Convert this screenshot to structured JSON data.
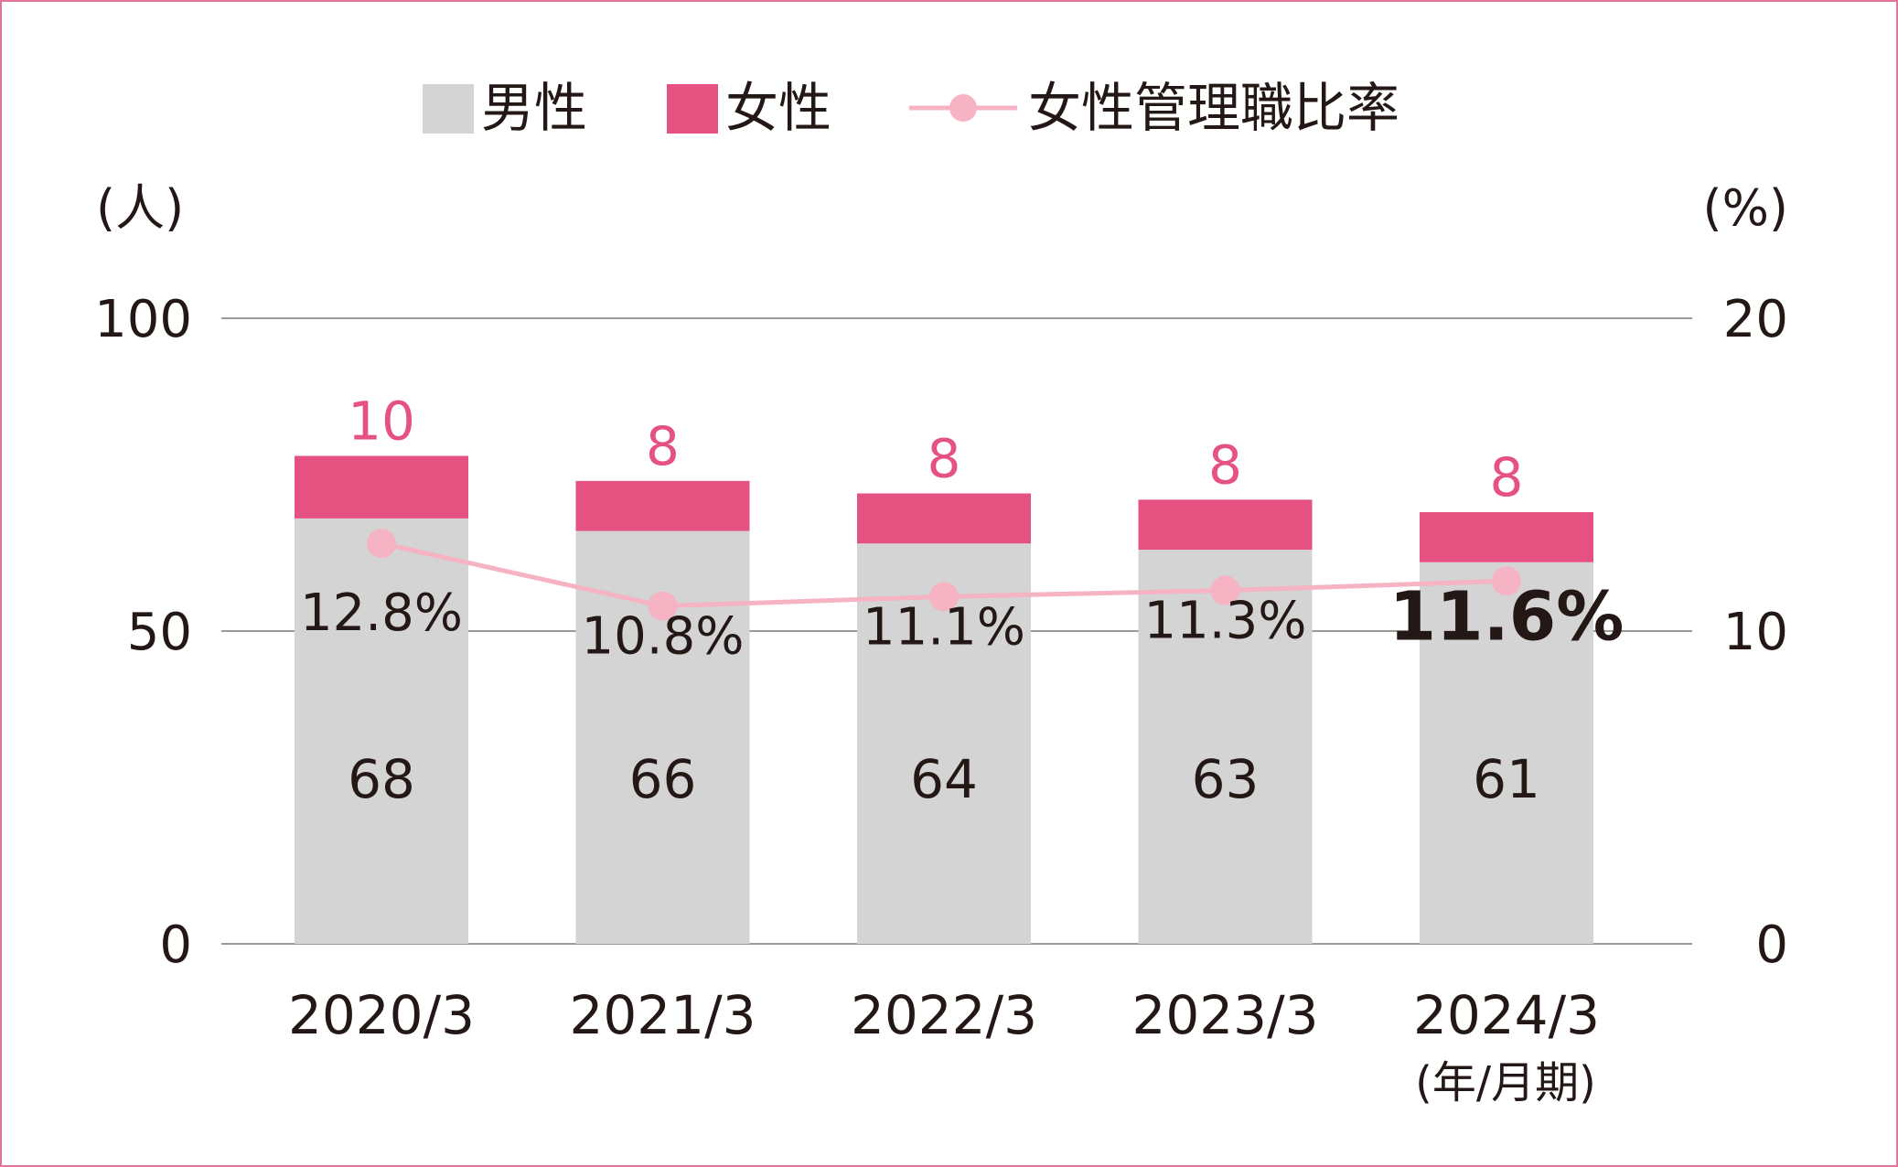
{
  "colors": {
    "male": "#d4d4d4",
    "female": "#e55181",
    "ratio_line": "#f6b3c4",
    "female_label": "#e55181",
    "text": "#231815",
    "grid": "#9a9a9a",
    "border": "#e5749a"
  },
  "legend": {
    "male_label": "男性",
    "female_label": "女性",
    "ratio_label": "女性管理職比率"
  },
  "axis": {
    "left_unit": "(人)",
    "right_unit": "(%)",
    "x_unit": "(年/月期)"
  },
  "chart_data": {
    "type": "bar",
    "stacked": true,
    "categories": [
      "2020/3",
      "2021/3",
      "2022/3",
      "2023/3",
      "2024/3"
    ],
    "series": [
      {
        "name": "男性",
        "type": "bar",
        "axis": "left",
        "values": [
          68,
          66,
          64,
          63,
          61
        ]
      },
      {
        "name": "女性",
        "type": "bar",
        "axis": "left",
        "values": [
          10,
          8,
          8,
          8,
          8
        ]
      },
      {
        "name": "女性管理職比率",
        "type": "line",
        "axis": "right",
        "values": [
          12.8,
          10.8,
          11.1,
          11.3,
          11.6
        ]
      }
    ],
    "ratio_labels": [
      "12.8%",
      "10.8%",
      "11.1%",
      "11.3%",
      "11.6%"
    ],
    "ylim_left": [
      0,
      100
    ],
    "ylim_right": [
      0,
      20
    ],
    "left_ticks": [
      "0",
      "50",
      "100"
    ],
    "right_ticks": [
      "0",
      "10",
      "20"
    ],
    "grid": true,
    "legend_position": "top-center",
    "highlight_index": 4
  }
}
